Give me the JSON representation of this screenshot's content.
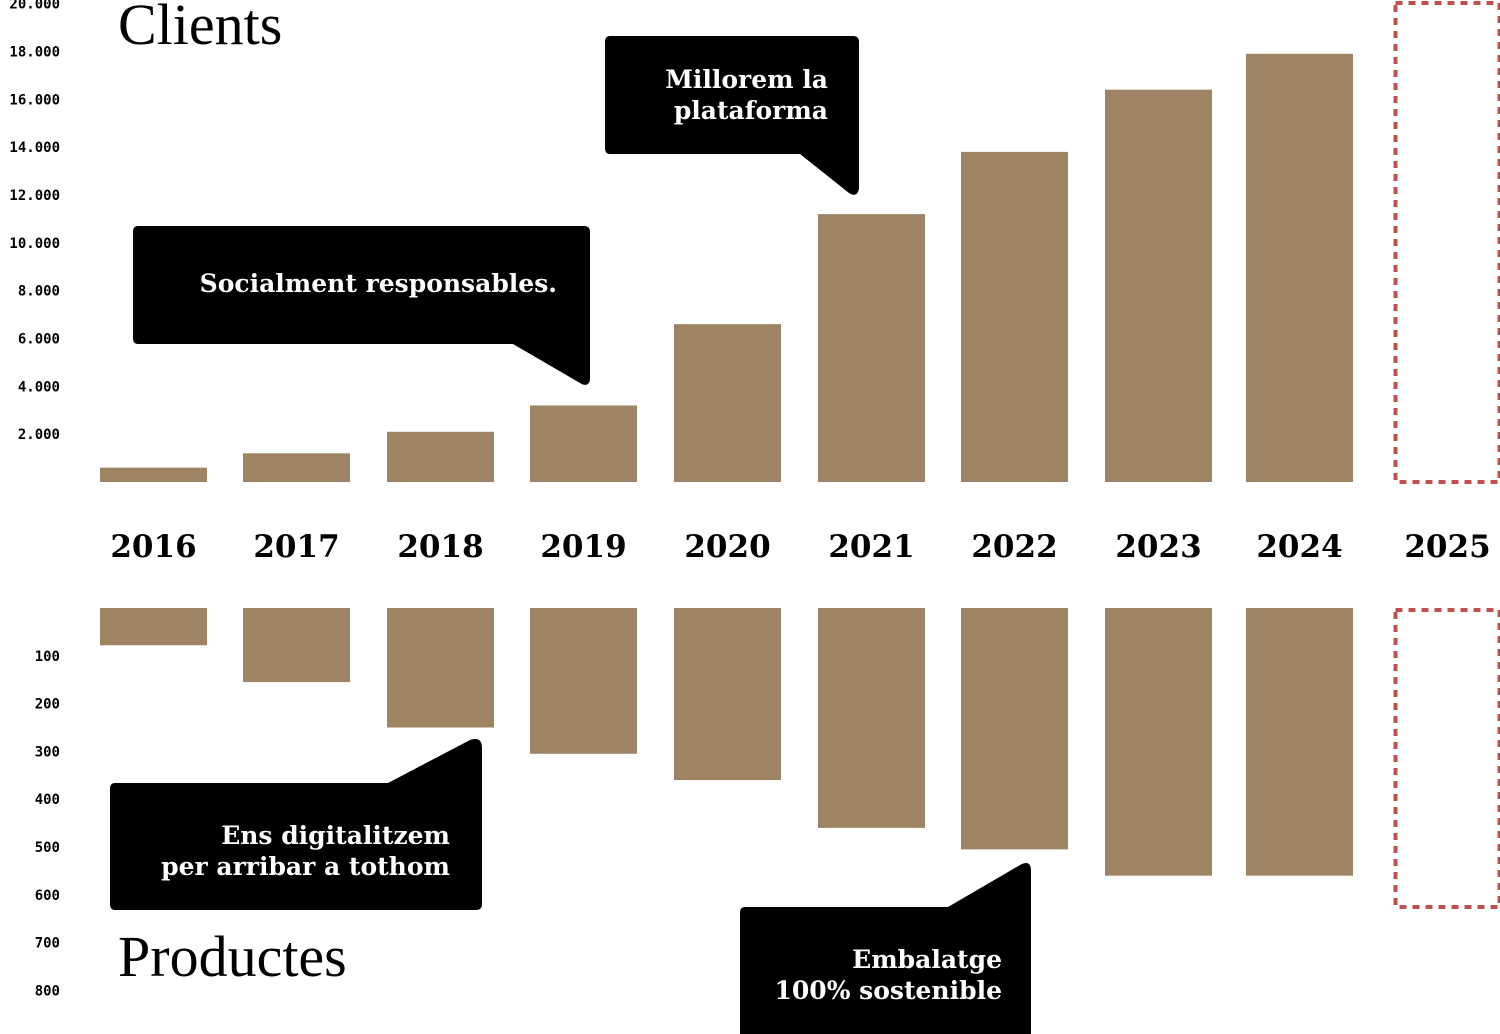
{
  "titles": {
    "clients": "Clients",
    "products": "Productes"
  },
  "colors": {
    "bar": "#9f8464",
    "future_outline": "#c0504d",
    "callout_bg": "#000000",
    "callout_text": "#ffffff"
  },
  "chart_data": [
    {
      "type": "bar",
      "title": "Clients",
      "categories": [
        "2016",
        "2017",
        "2018",
        "2019",
        "2020",
        "2021",
        "2022",
        "2023",
        "2024",
        "2025"
      ],
      "values": [
        600,
        1200,
        2100,
        3200,
        6600,
        11200,
        13800,
        16400,
        17900,
        null
      ],
      "placeholder_category": "2025",
      "ylim": [
        0,
        20000
      ],
      "yticks": [
        "2.000",
        "4.000",
        "6.000",
        "8.000",
        "10.000",
        "12.000",
        "14.000",
        "16.000",
        "18.000",
        "20.000"
      ],
      "grid": false,
      "annotations": [
        {
          "text": [
            "Socialment responsables."
          ],
          "points_to": "2019"
        },
        {
          "text": [
            "Millorem la",
            "plataforma"
          ],
          "points_to": "2021"
        }
      ]
    },
    {
      "type": "bar",
      "title": "Productes",
      "orientation": "downward",
      "categories": [
        "2016",
        "2017",
        "2018",
        "2019",
        "2020",
        "2021",
        "2022",
        "2023",
        "2024",
        "2025"
      ],
      "values": [
        78,
        155,
        250,
        305,
        360,
        460,
        505,
        560,
        560,
        null
      ],
      "placeholder_category": "2025",
      "ylim": [
        0,
        800
      ],
      "yticks": [
        "100",
        "200",
        "300",
        "400",
        "500",
        "600",
        "700",
        "800"
      ],
      "grid": false,
      "annotations": [
        {
          "text": [
            "Ens digitalitzem",
            "per arribar a tothom"
          ],
          "points_to": "2018"
        },
        {
          "text": [
            "Embalatge",
            "100% sostenible"
          ],
          "points_to": "2022"
        }
      ]
    }
  ]
}
